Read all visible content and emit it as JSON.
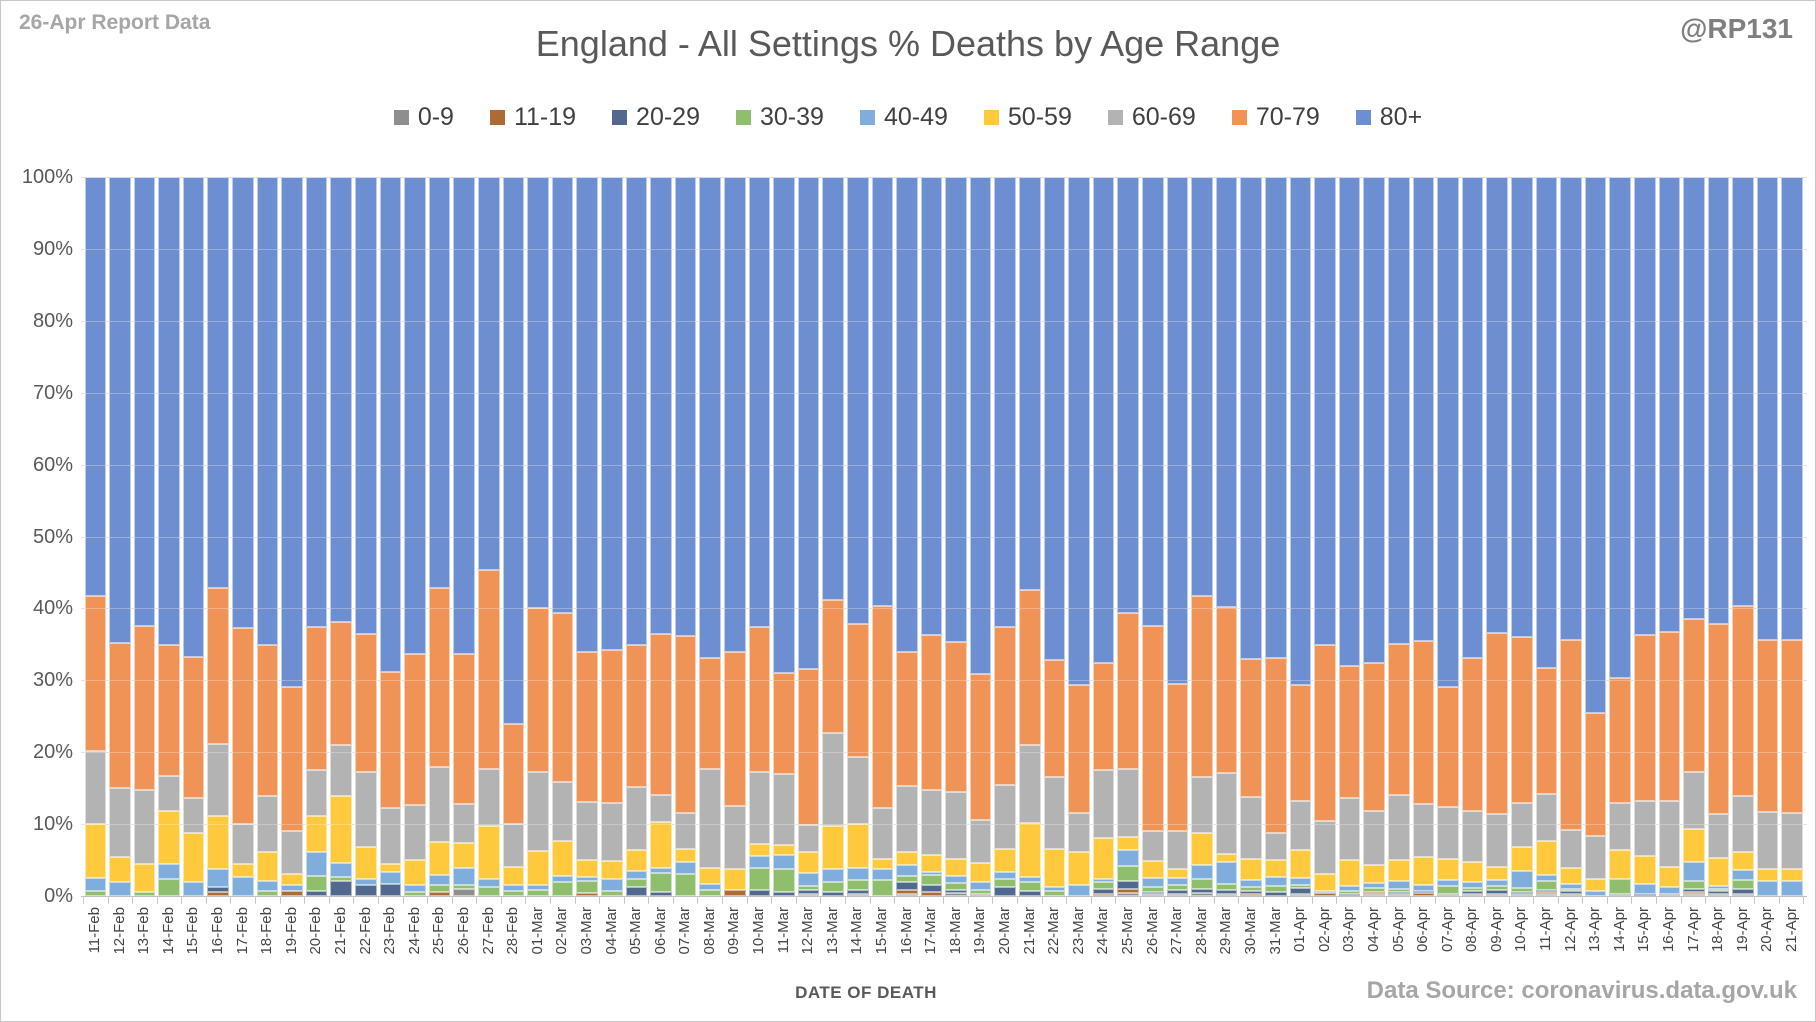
{
  "header": {
    "report_label": "26-Apr Report Data",
    "handle": "@RP131"
  },
  "title": "England - All Settings % Deaths by Age Range",
  "footer": {
    "xaxis_title": "DATE OF DEATH",
    "source": "Data Source: coronavirus.data.gov.uk"
  },
  "colors": {
    "gridline": "#d9d9d9",
    "axis_text": "#595959",
    "muted_text": "#a6a6a6"
  },
  "chart_data": {
    "type": "bar",
    "stacked": true,
    "percent_stacked": true,
    "title": "England - All Settings % Deaths by Age Range",
    "xlabel": "DATE OF DEATH",
    "ylabel": "",
    "ylim": [
      0,
      100
    ],
    "yticks": [
      0,
      10,
      20,
      30,
      40,
      50,
      60,
      70,
      80,
      90,
      100
    ],
    "ytick_format": "percent",
    "grid": true,
    "legend_position": "top",
    "categories": [
      "11-Feb",
      "12-Feb",
      "13-Feb",
      "14-Feb",
      "15-Feb",
      "16-Feb",
      "17-Feb",
      "18-Feb",
      "19-Feb",
      "20-Feb",
      "21-Feb",
      "22-Feb",
      "23-Feb",
      "24-Feb",
      "25-Feb",
      "26-Feb",
      "27-Feb",
      "28-Feb",
      "01-Mar",
      "02-Mar",
      "03-Mar",
      "04-Mar",
      "05-Mar",
      "06-Mar",
      "07-Mar",
      "08-Mar",
      "09-Mar",
      "10-Mar",
      "11-Mar",
      "12-Mar",
      "13-Mar",
      "14-Mar",
      "15-Mar",
      "16-Mar",
      "17-Mar",
      "18-Mar",
      "19-Mar",
      "20-Mar",
      "21-Mar",
      "22-Mar",
      "23-Mar",
      "24-Mar",
      "25-Mar",
      "26-Mar",
      "27-Mar",
      "28-Mar",
      "29-Mar",
      "30-Mar",
      "31-Mar",
      "01-Apr",
      "02-Apr",
      "03-Apr",
      "04-Apr",
      "05-Apr",
      "06-Apr",
      "07-Apr",
      "08-Apr",
      "09-Apr",
      "10-Apr",
      "11-Apr",
      "12-Apr",
      "13-Apr",
      "14-Apr",
      "15-Apr",
      "16-Apr",
      "17-Apr",
      "18-Apr",
      "19-Apr",
      "20-Apr",
      "21-Apr"
    ],
    "series": [
      {
        "name": "0-9",
        "color": "#8e8e8e",
        "values": [
          0,
          0,
          0,
          0,
          0,
          0,
          0,
          0,
          0,
          0,
          0,
          0,
          0,
          0,
          0,
          1.0,
          0,
          0,
          0,
          0,
          0,
          0,
          0,
          0,
          0,
          0,
          0,
          0,
          0,
          0.3,
          0,
          0.1,
          0,
          0.2,
          0,
          0.4,
          0.3,
          0,
          0,
          0,
          0,
          0,
          0.4,
          0.3,
          0.3,
          0.4,
          0.1,
          0,
          0,
          0.2,
          0,
          0,
          0.2,
          0.2,
          0,
          0.1,
          0.1,
          0.2,
          0.2,
          0.1,
          0.2,
          0,
          0.2,
          0,
          0.2,
          0.3,
          0.2,
          0.2,
          0,
          0
        ]
      },
      {
        "name": "11-19",
        "color": "#ae6a33",
        "values": [
          0,
          0,
          0,
          0,
          0,
          0.6,
          0,
          0,
          0.7,
          0,
          0,
          0,
          0,
          0,
          0.5,
          0,
          0,
          0,
          0,
          0,
          0.4,
          0,
          0,
          0,
          0,
          0,
          0.8,
          0,
          0,
          0,
          0,
          0,
          0,
          0.5,
          0.5,
          0,
          0,
          0,
          0,
          0,
          0,
          0.3,
          0.6,
          0,
          0,
          0,
          0,
          0.3,
          0,
          0,
          0.4,
          0,
          0.2,
          0,
          0.4,
          0,
          0,
          0,
          0,
          0.1,
          0,
          0,
          0,
          0,
          0,
          0.3,
          0,
          0,
          0,
          0
        ]
      },
      {
        "name": "20-29",
        "color": "#51688f",
        "values": [
          0,
          0,
          0,
          0,
          0,
          0.6,
          0,
          0,
          0,
          0.7,
          2.1,
          1.5,
          1.7,
          0,
          0,
          0,
          0,
          0,
          0,
          0,
          0,
          0,
          1.3,
          0.6,
          0,
          0,
          0,
          0.9,
          0.6,
          0.6,
          0.6,
          0.6,
          0,
          1.2,
          1.1,
          0.5,
          0,
          1.2,
          0.7,
          0,
          0,
          0.7,
          1.1,
          0.3,
          0.6,
          0.6,
          0.6,
          0.4,
          0.6,
          0.9,
          0,
          0.2,
          0,
          0.2,
          0.1,
          0,
          0.4,
          0.5,
          0.2,
          0.3,
          0.4,
          0,
          0,
          0.3,
          0,
          0.4,
          0.4,
          0.7,
          0,
          0
        ]
      },
      {
        "name": "30-39",
        "color": "#8fbe6d",
        "values": [
          0.7,
          0,
          0.5,
          2.3,
          0,
          0,
          0,
          0.7,
          0,
          2.1,
          0.5,
          0,
          0,
          0.5,
          1.1,
          0.6,
          1.2,
          0.7,
          0.9,
          1.9,
          1.7,
          0.7,
          1.0,
          2.6,
          3.0,
          0.9,
          0,
          3.0,
          3.2,
          0.5,
          1.3,
          1.4,
          2.2,
          0.8,
          1.3,
          0.9,
          0.6,
          1.2,
          1.3,
          0.7,
          0,
          0.9,
          2.1,
          0.7,
          0.7,
          1.3,
          0.8,
          0.6,
          0.8,
          0.3,
          0,
          0.4,
          0.6,
          0.4,
          0,
          1.1,
          0.5,
          0.6,
          0.6,
          1.3,
          0.1,
          0,
          2.1,
          0,
          0,
          1.1,
          0.3,
          1.2,
          0,
          0
        ]
      },
      {
        "name": "40-49",
        "color": "#7faedc",
        "values": [
          1.8,
          1.9,
          0,
          2.1,
          1.9,
          2.6,
          2.7,
          1.4,
          0.9,
          3.3,
          2.0,
          0.9,
          1.6,
          1.0,
          1.3,
          2.3,
          1.1,
          0.9,
          0.7,
          0.9,
          0.5,
          1.7,
          1.2,
          0.7,
          1.7,
          0.8,
          0,
          1.7,
          1.9,
          1.8,
          1.8,
          1.6,
          1.6,
          1.5,
          0.5,
          1.0,
          1.0,
          0.9,
          0.6,
          0.6,
          1.6,
          0.4,
          2.2,
          1.2,
          0.9,
          2.0,
          3.1,
          0.9,
          1.2,
          1.0,
          0.1,
          0.7,
          0.6,
          1.1,
          0.9,
          0.9,
          0.8,
          0.8,
          2.3,
          0.8,
          0.7,
          0.7,
          0,
          1.4,
          1.0,
          2.7,
          0.4,
          1.4,
          2.1,
          2.1
        ]
      },
      {
        "name": "50-59",
        "color": "#ffc93e",
        "values": [
          7.5,
          3.5,
          4.0,
          7.4,
          6.8,
          7.3,
          1.8,
          4.0,
          1.5,
          5.0,
          9.3,
          4.4,
          1.2,
          3.5,
          4.6,
          3.5,
          7.5,
          2.5,
          4.7,
          4.9,
          2.4,
          2.5,
          2.9,
          6.4,
          1.9,
          2.2,
          2.9,
          1.6,
          1.4,
          2.9,
          6.0,
          6.2,
          1.3,
          1.8,
          2.3,
          2.4,
          2.7,
          3.2,
          7.5,
          5.3,
          4.5,
          5.8,
          1.8,
          2.4,
          1.2,
          4.4,
          1.1,
          2.9,
          2.4,
          3.9,
          2.4,
          3.7,
          2.6,
          3.0,
          3.9,
          2.9,
          2.8,
          1.8,
          3.3,
          4.7,
          2.2,
          1.7,
          4.0,
          3.9,
          2.7,
          4.5,
          3.9,
          2.6,
          1.7,
          1.7
        ]
      },
      {
        "name": "60-69",
        "color": "#b3b3b3",
        "values": [
          10.2,
          9.6,
          10.3,
          4.9,
          5.0,
          10.1,
          5.5,
          7.8,
          5.9,
          6.4,
          7.1,
          10.4,
          7.8,
          7.7,
          10.5,
          5.4,
          7.8,
          5.9,
          11.0,
          8.1,
          8.1,
          8.0,
          8.8,
          3.7,
          4.9,
          13.8,
          8.8,
          10.0,
          9.9,
          3.8,
          13.0,
          9.3,
          7.1,
          9.3,
          9.0,
          9.3,
          6.0,
          9.0,
          10.9,
          9.9,
          5.4,
          9.4,
          9.5,
          4.2,
          5.3,
          7.8,
          11.2,
          8.7,
          3.8,
          6.9,
          7.4,
          8.5,
          7.5,
          9.0,
          7.3,
          7.2,
          7.0,
          7.5,
          6.2,
          6.6,
          5.3,
          5.9,
          6.6,
          7.6,
          9.2,
          7.9,
          6.2,
          7.7,
          7.9,
          7.8
        ]
      },
      {
        "name": "70-79",
        "color": "#ef9456",
        "values": [
          21.5,
          20.2,
          22.8,
          18.2,
          19.6,
          21.6,
          27.3,
          21.0,
          20.1,
          19.9,
          17.1,
          19.3,
          18.9,
          21.0,
          24.9,
          20.9,
          27.8,
          13.9,
          22.8,
          23.6,
          20.8,
          21.3,
          19.7,
          22.4,
          24.7,
          15.4,
          21.4,
          20.2,
          14.0,
          21.7,
          18.5,
          18.5,
          28.1,
          18.6,
          21.6,
          20.8,
          20.3,
          21.9,
          21.5,
          16.3,
          17.9,
          14.9,
          21.6,
          28.4,
          20.5,
          25.2,
          23.2,
          19.2,
          24.3,
          16.1,
          24.5,
          18.5,
          20.6,
          21.0,
          22.7,
          16.8,
          21.4,
          25.1,
          23.1,
          17.6,
          26.5,
          17.2,
          17.4,
          23.1,
          23.6,
          21.3,
          26.4,
          26.5,
          23.9,
          24.0
        ]
      },
      {
        "name": "80+",
        "color": "#6d8fd1",
        "values": [
          58.3,
          64.8,
          62.4,
          65.1,
          66.7,
          57.2,
          62.7,
          65.1,
          70.9,
          62.6,
          61.9,
          63.5,
          68.8,
          66.3,
          57.1,
          66.3,
          54.6,
          76.1,
          59.9,
          60.6,
          66.1,
          65.8,
          65.1,
          63.6,
          63.8,
          66.9,
          66.1,
          62.6,
          69.0,
          68.4,
          58.8,
          62.3,
          59.7,
          66.1,
          63.7,
          64.7,
          69.1,
          62.6,
          57.5,
          67.2,
          70.6,
          67.6,
          60.7,
          62.5,
          70.5,
          58.3,
          59.9,
          67.0,
          66.9,
          70.7,
          65.2,
          68.0,
          67.7,
          65.1,
          64.7,
          71.0,
          67.0,
          63.5,
          64.1,
          68.5,
          64.6,
          74.5,
          69.7,
          63.7,
          63.3,
          61.5,
          62.2,
          59.7,
          64.4,
          64.4
        ]
      }
    ]
  }
}
